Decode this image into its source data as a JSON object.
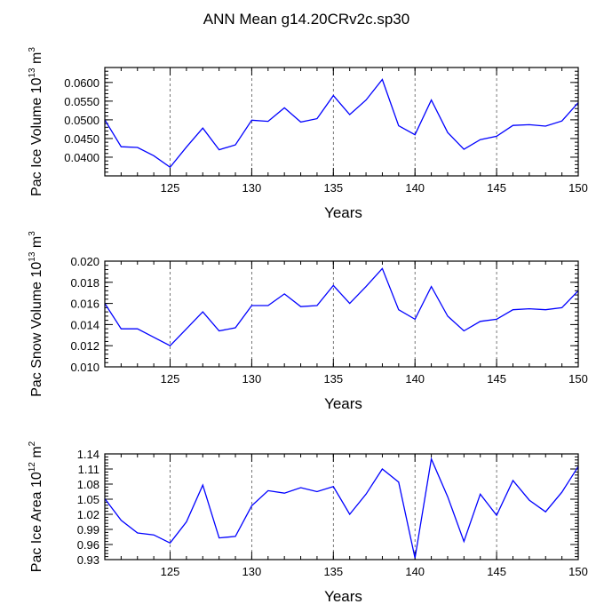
{
  "title": "ANN Mean g14.20CRv2c.sp30",
  "colors": {
    "line": "#0000ff",
    "axis": "#000000",
    "grid": "#555555",
    "background": "#ffffff"
  },
  "chart_data": [
    {
      "type": "line",
      "title": "ANN Mean g14.20CRv2c.sp30",
      "ylabel": "Pac Ice Volume",
      "ylabel_unit_base": "10",
      "ylabel_unit_exp": "13",
      "ylabel_unit_tail": "m",
      "ylabel_unit_tail_exp": "3",
      "xlabel": "Years",
      "xlim": [
        121,
        150
      ],
      "ylim": [
        0.035,
        0.064
      ],
      "xticks": [
        125,
        130,
        135,
        140,
        145,
        150
      ],
      "xtick_labels": [
        "125",
        "130",
        "135",
        "140",
        "145",
        "150"
      ],
      "yticks": [
        0.04,
        0.045,
        0.05,
        0.055,
        0.06
      ],
      "ytick_labels": [
        "0.0400",
        "0.0450",
        "0.0500",
        "0.0550",
        "0.0600"
      ],
      "grid_x": [
        125,
        130,
        135,
        140,
        145
      ],
      "x": [
        121,
        122,
        123,
        124,
        125,
        126,
        127,
        128,
        129,
        130,
        131,
        132,
        133,
        134,
        135,
        136,
        137,
        138,
        139,
        140,
        141,
        142,
        143,
        144,
        145,
        146,
        147,
        148,
        149,
        150
      ],
      "values": [
        0.05,
        0.0428,
        0.0426,
        0.0404,
        0.0373,
        0.0427,
        0.0478,
        0.042,
        0.0433,
        0.0499,
        0.0496,
        0.0532,
        0.0494,
        0.0503,
        0.0565,
        0.0514,
        0.0553,
        0.0608,
        0.0484,
        0.046,
        0.0553,
        0.0466,
        0.0421,
        0.0447,
        0.0456,
        0.0485,
        0.0487,
        0.0483,
        0.0497,
        0.0546
      ]
    },
    {
      "type": "line",
      "ylabel": "Pac Snow Volume",
      "ylabel_unit_base": "10",
      "ylabel_unit_exp": "13",
      "ylabel_unit_tail": "m",
      "ylabel_unit_tail_exp": "3",
      "xlabel": "Years",
      "xlim": [
        121,
        150
      ],
      "ylim": [
        0.01,
        0.02
      ],
      "xticks": [
        125,
        130,
        135,
        140,
        145,
        150
      ],
      "xtick_labels": [
        "125",
        "130",
        "135",
        "140",
        "145",
        "150"
      ],
      "yticks": [
        0.01,
        0.012,
        0.014,
        0.016,
        0.018,
        0.02
      ],
      "ytick_labels": [
        "0.010",
        "0.012",
        "0.014",
        "0.016",
        "0.018",
        "0.020"
      ],
      "grid_x": [
        125,
        130,
        135,
        140,
        145
      ],
      "x": [
        121,
        122,
        123,
        124,
        125,
        126,
        127,
        128,
        129,
        130,
        131,
        132,
        133,
        134,
        135,
        136,
        137,
        138,
        139,
        140,
        141,
        142,
        143,
        144,
        145,
        146,
        147,
        148,
        149,
        150
      ],
      "values": [
        0.016,
        0.0136,
        0.0136,
        0.0128,
        0.012,
        0.0136,
        0.0152,
        0.0134,
        0.0137,
        0.0158,
        0.0158,
        0.0169,
        0.0157,
        0.0158,
        0.0177,
        0.016,
        0.0176,
        0.0193,
        0.0154,
        0.0145,
        0.0176,
        0.0148,
        0.0134,
        0.0143,
        0.0145,
        0.0154,
        0.0155,
        0.0154,
        0.0156,
        0.0172
      ]
    },
    {
      "type": "line",
      "ylabel": "Pac Ice Area",
      "ylabel_unit_base": "10",
      "ylabel_unit_exp": "12",
      "ylabel_unit_tail": "m",
      "ylabel_unit_tail_exp": "2",
      "xlabel": "Years",
      "xlim": [
        121,
        150
      ],
      "ylim": [
        0.93,
        1.14
      ],
      "xticks": [
        125,
        130,
        135,
        140,
        145,
        150
      ],
      "xtick_labels": [
        "125",
        "130",
        "135",
        "140",
        "145",
        "150"
      ],
      "yticks": [
        0.93,
        0.96,
        0.99,
        1.02,
        1.05,
        1.08,
        1.11,
        1.14
      ],
      "ytick_labels": [
        "0.93",
        "0.96",
        "0.99",
        "1.02",
        "1.05",
        "1.08",
        "1.11",
        "1.14"
      ],
      "grid_x": [
        125,
        130,
        135,
        140,
        145
      ],
      "x": [
        121,
        122,
        123,
        124,
        125,
        126,
        127,
        128,
        129,
        130,
        131,
        132,
        133,
        134,
        135,
        136,
        137,
        138,
        139,
        140,
        141,
        142,
        143,
        144,
        145,
        146,
        147,
        148,
        149,
        150
      ],
      "values": [
        1.051,
        1.008,
        0.983,
        0.979,
        0.963,
        1.005,
        1.078,
        0.973,
        0.976,
        1.037,
        1.067,
        1.062,
        1.073,
        1.065,
        1.075,
        1.02,
        1.06,
        1.11,
        1.084,
        0.933,
        1.13,
        1.055,
        0.966,
        1.06,
        1.018,
        1.087,
        1.048,
        1.025,
        1.064,
        1.115
      ]
    }
  ]
}
